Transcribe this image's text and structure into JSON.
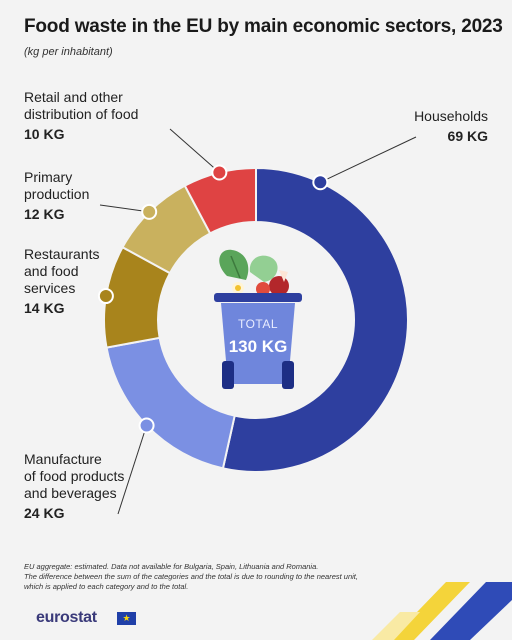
{
  "header": {
    "title": "Food waste in the EU by main economic sectors, 2023",
    "subtitle": "(kg per inhabitant)"
  },
  "center": {
    "total_label": "TOTAL",
    "total_value": "130 KG"
  },
  "labels": [
    {
      "name": "Households",
      "value": "69 KG"
    },
    {
      "name": "Manufacture\nof food products\nand beverages",
      "value": "24 KG"
    },
    {
      "name": "Restaurants\nand food\nservices",
      "value": "14 KG"
    },
    {
      "name": "Primary\nproduction",
      "value": "12 KG"
    },
    {
      "name": "Retail and other\ndistribution of food",
      "value": "10 KG"
    }
  ],
  "footnote": {
    "line1": "EU aggregate: estimated. Data not available for Bulgaria, Spain, Lithuania and Romania.",
    "line2": "The difference between the sum of the categories and the total is due to rounding to the nearest unit,",
    "line3": "which is applied to each category and to the total."
  },
  "brand": {
    "name": "eurostat"
  },
  "chart_data": {
    "type": "pie",
    "title": "Food waste in the EU by main economic sectors, 2023",
    "subtitle": "(kg per inhabitant)",
    "unit": "kg per inhabitant",
    "total": 130,
    "categories": [
      "Households",
      "Manufacture of food products and beverages",
      "Restaurants and food services",
      "Primary production",
      "Retail and other distribution of food"
    ],
    "values": [
      69,
      24,
      14,
      12,
      10
    ],
    "colors": [
      "#2e3f9f",
      "#7b90e3",
      "#a8841c",
      "#c9b15e",
      "#df4343"
    ]
  }
}
